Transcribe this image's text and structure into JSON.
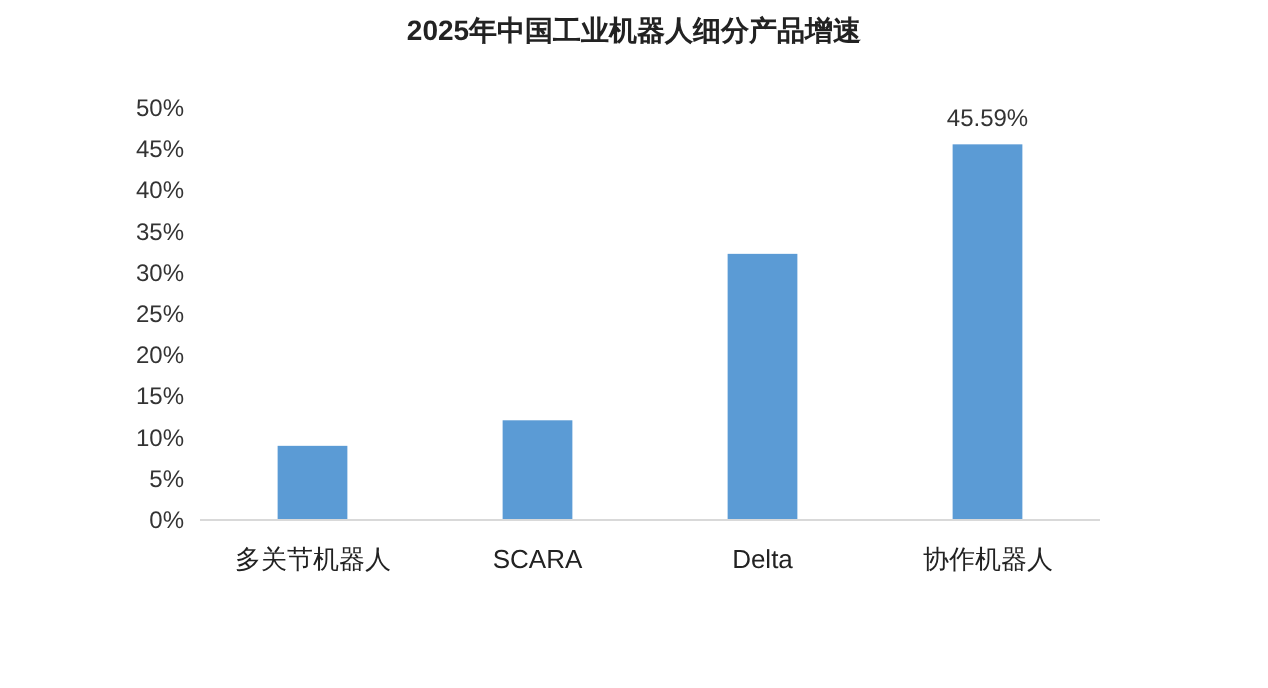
{
  "chart_data": {
    "type": "bar",
    "title": "2025年中国工业机器人细分产品增速",
    "categories": [
      "多关节机器人",
      "SCARA",
      "Delta",
      "协作机器人"
    ],
    "values": [
      9,
      12.1,
      32.3,
      45.59
    ],
    "value_labels": [
      null,
      null,
      null,
      "45.59%"
    ],
    "color": "#5b9bd5",
    "ylim": [
      0,
      50
    ],
    "yticks": [
      {
        "value": 0,
        "label": "0%"
      },
      {
        "value": 5,
        "label": "5%"
      },
      {
        "value": 10,
        "label": "10%"
      },
      {
        "value": 15,
        "label": "15%"
      },
      {
        "value": 20,
        "label": "20%"
      },
      {
        "value": 25,
        "label": "25%"
      },
      {
        "value": 30,
        "label": "30%"
      },
      {
        "value": 35,
        "label": "35%"
      },
      {
        "value": 40,
        "label": "40%"
      },
      {
        "value": 45,
        "label": "45%"
      },
      {
        "value": 50,
        "label": "50%"
      }
    ],
    "grid": false
  }
}
